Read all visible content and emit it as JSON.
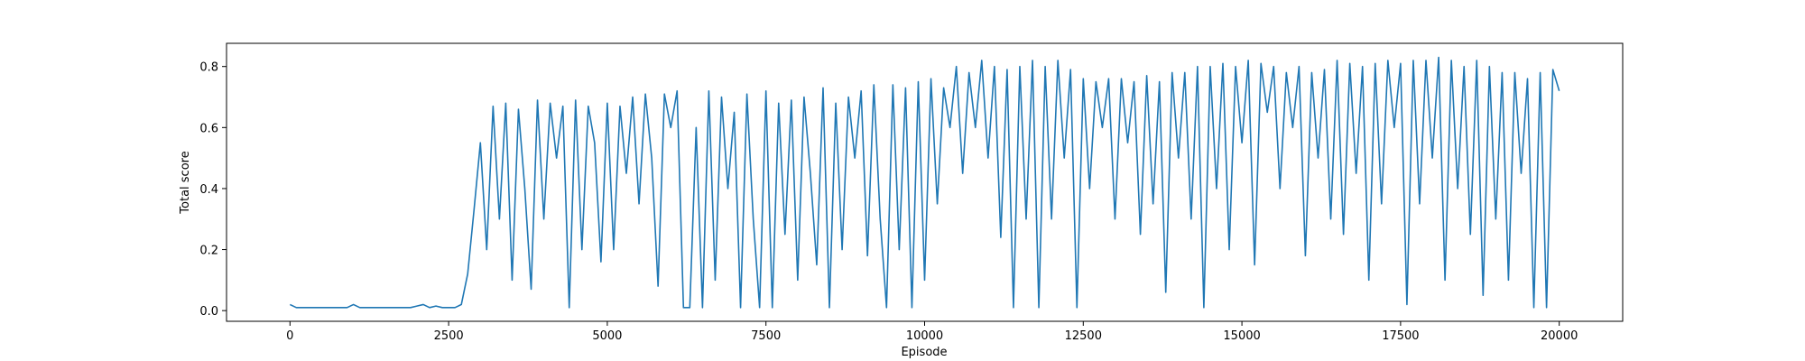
{
  "chart_data": {
    "type": "line",
    "x_label": "Episode",
    "y_label": "Total score",
    "x": [
      0,
      100,
      200,
      300,
      400,
      500,
      600,
      700,
      800,
      900,
      1000,
      1100,
      1200,
      1300,
      1400,
      1500,
      1600,
      1700,
      1800,
      1900,
      2000,
      2100,
      2200,
      2300,
      2400,
      2500,
      2600,
      2700,
      2800,
      2900,
      3000,
      3100,
      3200,
      3300,
      3400,
      3500,
      3600,
      3700,
      3800,
      3900,
      4000,
      4100,
      4200,
      4300,
      4400,
      4500,
      4600,
      4700,
      4800,
      4900,
      5000,
      5100,
      5200,
      5300,
      5400,
      5500,
      5600,
      5700,
      5800,
      5900,
      6000,
      6100,
      6200,
      6300,
      6400,
      6500,
      6600,
      6700,
      6800,
      6900,
      7000,
      7100,
      7200,
      7300,
      7400,
      7500,
      7600,
      7700,
      7800,
      7900,
      8000,
      8100,
      8200,
      8300,
      8400,
      8500,
      8600,
      8700,
      8800,
      8900,
      9000,
      9100,
      9200,
      9300,
      9400,
      9500,
      9600,
      9700,
      9800,
      9900,
      10000,
      10100,
      10200,
      10300,
      10400,
      10500,
      10600,
      10700,
      10800,
      10900,
      11000,
      11100,
      11200,
      11300,
      11400,
      11500,
      11600,
      11700,
      11800,
      11900,
      12000,
      12100,
      12200,
      12300,
      12400,
      12500,
      12600,
      12700,
      12800,
      12900,
      13000,
      13100,
      13200,
      13300,
      13400,
      13500,
      13600,
      13700,
      13800,
      13900,
      14000,
      14100,
      14200,
      14300,
      14400,
      14500,
      14600,
      14700,
      14800,
      14900,
      15000,
      15100,
      15200,
      15300,
      15400,
      15500,
      15600,
      15700,
      15800,
      15900,
      16000,
      16100,
      16200,
      16300,
      16400,
      16500,
      16600,
      16700,
      16800,
      16900,
      17000,
      17100,
      17200,
      17300,
      17400,
      17500,
      17600,
      17700,
      17800,
      17900,
      18000,
      18100,
      18200,
      18300,
      18400,
      18500,
      18600,
      18700,
      18800,
      18900,
      19000,
      19100,
      19200,
      19300,
      19400,
      19500,
      19600,
      19700,
      19800,
      19900,
      20000
    ],
    "series": [
      {
        "color": "#1f77b4",
        "values": [
          0.02,
          0.01,
          0.01,
          0.01,
          0.01,
          0.01,
          0.01,
          0.01,
          0.01,
          0.01,
          0.02,
          0.01,
          0.01,
          0.01,
          0.01,
          0.01,
          0.01,
          0.01,
          0.01,
          0.01,
          0.015,
          0.02,
          0.01,
          0.015,
          0.01,
          0.01,
          0.01,
          0.02,
          0.12,
          0.33,
          0.55,
          0.2,
          0.67,
          0.3,
          0.68,
          0.1,
          0.66,
          0.4,
          0.07,
          0.69,
          0.3,
          0.68,
          0.5,
          0.67,
          0.01,
          0.69,
          0.2,
          0.67,
          0.55,
          0.16,
          0.68,
          0.2,
          0.67,
          0.45,
          0.7,
          0.35,
          0.71,
          0.5,
          0.08,
          0.71,
          0.6,
          0.72,
          0.01,
          0.01,
          0.6,
          0.01,
          0.72,
          0.1,
          0.7,
          0.4,
          0.65,
          0.01,
          0.71,
          0.3,
          0.01,
          0.72,
          0.01,
          0.68,
          0.25,
          0.69,
          0.1,
          0.7,
          0.45,
          0.15,
          0.73,
          0.01,
          0.68,
          0.2,
          0.7,
          0.5,
          0.72,
          0.18,
          0.74,
          0.3,
          0.01,
          0.74,
          0.2,
          0.73,
          0.01,
          0.75,
          0.1,
          0.76,
          0.35,
          0.73,
          0.6,
          0.8,
          0.45,
          0.78,
          0.6,
          0.82,
          0.5,
          0.8,
          0.24,
          0.79,
          0.01,
          0.8,
          0.3,
          0.82,
          0.01,
          0.8,
          0.3,
          0.82,
          0.5,
          0.79,
          0.01,
          0.76,
          0.4,
          0.75,
          0.6,
          0.76,
          0.3,
          0.76,
          0.55,
          0.75,
          0.25,
          0.77,
          0.35,
          0.75,
          0.06,
          0.78,
          0.5,
          0.78,
          0.3,
          0.8,
          0.01,
          0.8,
          0.4,
          0.81,
          0.2,
          0.8,
          0.55,
          0.82,
          0.15,
          0.81,
          0.65,
          0.8,
          0.4,
          0.78,
          0.6,
          0.8,
          0.18,
          0.78,
          0.5,
          0.79,
          0.3,
          0.82,
          0.25,
          0.81,
          0.45,
          0.8,
          0.1,
          0.81,
          0.35,
          0.82,
          0.6,
          0.81,
          0.02,
          0.82,
          0.35,
          0.82,
          0.5,
          0.83,
          0.1,
          0.82,
          0.4,
          0.8,
          0.25,
          0.82,
          0.05,
          0.8,
          0.3,
          0.78,
          0.1,
          0.78,
          0.45,
          0.76,
          0.01,
          0.78,
          0.01,
          0.79,
          0.72
        ]
      }
    ],
    "xlim": [
      -1000,
      21000
    ],
    "xticks": [
      0,
      2500,
      5000,
      7500,
      10000,
      12500,
      15000,
      17500,
      20000
    ],
    "ylim": [
      -0.035,
      0.876
    ],
    "yticks": [
      {
        "value": 0,
        "label": "0.0"
      },
      0.2,
      0.4,
      0.6,
      0.8
    ]
  }
}
